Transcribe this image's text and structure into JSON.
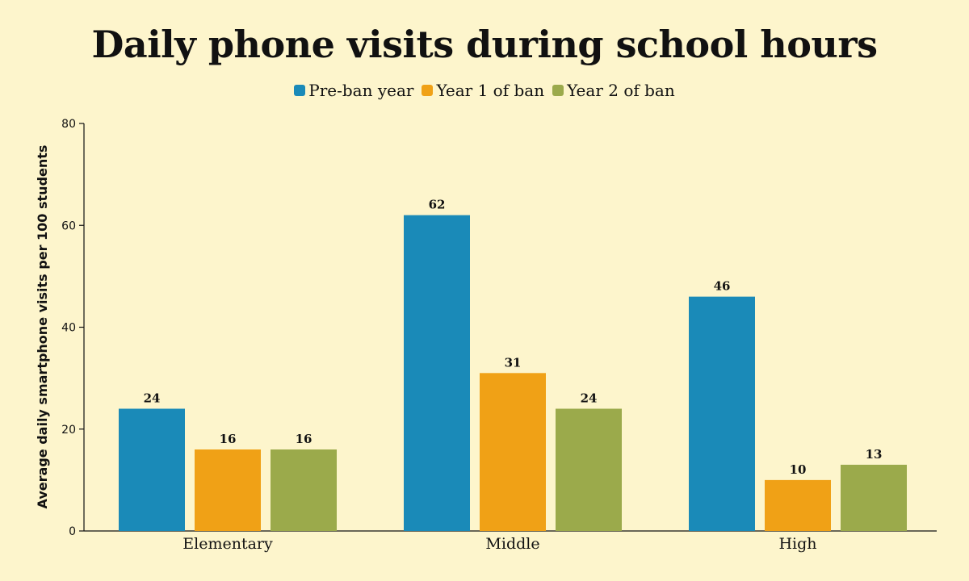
{
  "chart_data": {
    "type": "bar",
    "title": "Daily phone visits during school hours",
    "xlabel": "",
    "ylabel": "Average daily smartphone visits per 100 students",
    "categories": [
      "Elementary",
      "Middle",
      "High"
    ],
    "series": [
      {
        "name": "Pre-ban year",
        "values": [
          24,
          62,
          46
        ],
        "color": "#1a8ab8"
      },
      {
        "name": "Year 1 of ban",
        "values": [
          16,
          31,
          10
        ],
        "color": "#f0a116"
      },
      {
        "name": "Year 2 of ban",
        "values": [
          16,
          24,
          13
        ],
        "color": "#9baa4b"
      }
    ],
    "ylim": [
      0,
      80
    ],
    "yticks": [
      0,
      20,
      40,
      60,
      80
    ],
    "grid": false,
    "legend": "top-center"
  }
}
